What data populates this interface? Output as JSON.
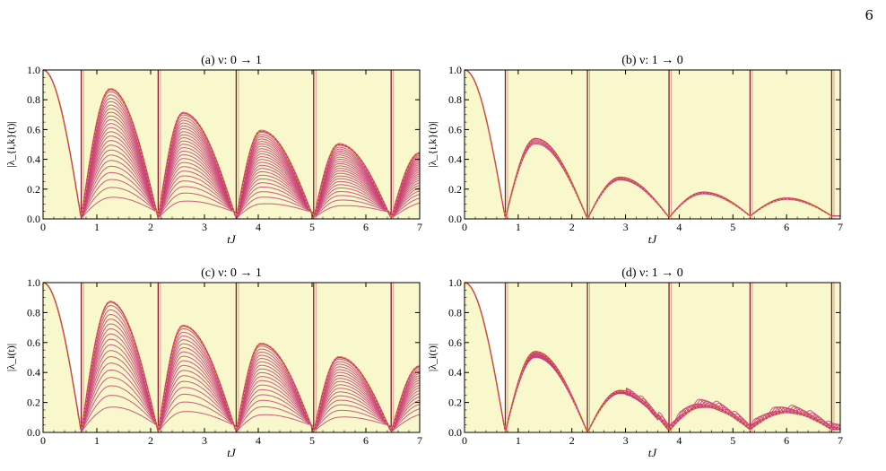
{
  "page": {
    "number": "6"
  },
  "colors": {
    "background_fill": "#f8f8cc",
    "curve": "#c83c76",
    "envelope": "#f2ec1a",
    "vline": "#7a1f2a"
  },
  "chart_data": [
    {
      "type": "line",
      "title": "(a) ν: 0 → 1",
      "xlabel": "tJ",
      "ylabel": "|λ_{i,k}(t)|",
      "xlim": [
        0,
        7
      ],
      "ylim": [
        0,
        1
      ],
      "xticks": [
        0,
        1,
        2,
        3,
        4,
        5,
        6,
        7
      ],
      "yticks": [
        0.0,
        0.2,
        0.4,
        0.6,
        0.8,
        1.0
      ],
      "xtick_labels": [
        "0",
        "1",
        "2",
        "3",
        "4",
        "5",
        "6",
        "7"
      ],
      "ytick_labels": [
        "0.0",
        "0.2",
        "0.4",
        "0.6",
        "0.8",
        "1.0"
      ],
      "vlines": [
        0.71,
        2.14,
        3.59,
        5.03,
        6.47
      ],
      "envelope_points": [
        [
          0,
          1.0
        ],
        [
          0.71,
          0.0
        ],
        [
          1.25,
          0.87
        ],
        [
          2.14,
          0.0
        ],
        [
          2.6,
          0.71
        ],
        [
          3.59,
          0.0
        ],
        [
          4.05,
          0.59
        ],
        [
          5.03,
          0.0
        ],
        [
          5.5,
          0.5
        ],
        [
          6.47,
          0.0
        ],
        [
          7.0,
          0.44
        ]
      ],
      "num_family_curves": 24
    },
    {
      "type": "line",
      "title": "(b) ν: 1 → 0",
      "xlabel": "tJ",
      "ylabel": "|λ_{i,k}(t)|",
      "xlim": [
        0,
        7
      ],
      "ylim": [
        0,
        1
      ],
      "xticks": [
        0,
        1,
        2,
        3,
        4,
        5,
        6,
        7
      ],
      "yticks": [
        0.0,
        0.2,
        0.4,
        0.6,
        0.8,
        1.0
      ],
      "xtick_labels": [
        "0",
        "1",
        "2",
        "3",
        "4",
        "5",
        "6",
        "7"
      ],
      "ytick_labels": [
        "0.0",
        "0.2",
        "0.4",
        "0.6",
        "0.8",
        "1.0"
      ],
      "vlines": [
        0.76,
        2.29,
        3.81,
        5.32,
        6.84
      ],
      "envelope_points": [
        [
          0,
          1.0
        ],
        [
          0.76,
          0.0
        ],
        [
          1.32,
          0.54
        ],
        [
          2.29,
          0.0
        ],
        [
          2.9,
          0.28
        ],
        [
          3.81,
          0.01
        ],
        [
          4.45,
          0.18
        ],
        [
          5.32,
          0.02
        ],
        [
          6.0,
          0.14
        ],
        [
          6.84,
          0.02
        ],
        [
          7.0,
          0.02
        ]
      ],
      "num_family_curves": 6
    },
    {
      "type": "line",
      "title": "(c) ν: 0 → 1",
      "xlabel": "tJ",
      "ylabel": "|λ_i(t)|",
      "xlim": [
        0,
        7
      ],
      "ylim": [
        0,
        1
      ],
      "xticks": [
        0,
        1,
        2,
        3,
        4,
        5,
        6,
        7
      ],
      "yticks": [
        0.0,
        0.2,
        0.4,
        0.6,
        0.8,
        1.0
      ],
      "xtick_labels": [
        "0",
        "1",
        "2",
        "3",
        "4",
        "5",
        "6",
        "7"
      ],
      "ytick_labels": [
        "0.0",
        "0.2",
        "0.4",
        "0.6",
        "0.8",
        "1.0"
      ],
      "vlines": [
        0.71,
        2.14,
        3.59,
        5.03,
        6.47
      ],
      "envelope_points": [
        [
          0,
          1.0
        ],
        [
          0.71,
          0.0
        ],
        [
          1.25,
          0.87
        ],
        [
          2.14,
          0.0
        ],
        [
          2.6,
          0.71
        ],
        [
          3.59,
          0.0
        ],
        [
          4.05,
          0.59
        ],
        [
          5.03,
          0.0
        ],
        [
          5.5,
          0.5
        ],
        [
          6.47,
          0.0
        ],
        [
          7.0,
          0.44
        ]
      ],
      "num_family_curves": 18
    },
    {
      "type": "line",
      "title": "(d) ν: 1 → 0",
      "xlabel": "tJ",
      "ylabel": "|λ_i(t)|",
      "xlim": [
        0,
        7
      ],
      "ylim": [
        0,
        1
      ],
      "xticks": [
        0,
        1,
        2,
        3,
        4,
        5,
        6,
        7
      ],
      "yticks": [
        0.0,
        0.2,
        0.4,
        0.6,
        0.8,
        1.0
      ],
      "xtick_labels": [
        "0",
        "1",
        "2",
        "3",
        "4",
        "5",
        "6",
        "7"
      ],
      "ytick_labels": [
        "0.0",
        "0.2",
        "0.4",
        "0.6",
        "0.8",
        "1.0"
      ],
      "vlines": [
        0.76,
        2.29,
        3.81,
        5.32,
        6.84
      ],
      "envelope_points": [
        [
          0,
          1.0
        ],
        [
          0.76,
          0.0
        ],
        [
          1.32,
          0.54
        ],
        [
          2.29,
          0.0
        ],
        [
          2.9,
          0.28
        ],
        [
          3.81,
          0.01
        ],
        [
          4.45,
          0.18
        ],
        [
          5.32,
          0.02
        ],
        [
          6.0,
          0.14
        ],
        [
          6.84,
          0.02
        ],
        [
          7.0,
          0.02
        ]
      ],
      "num_family_curves": 12
    }
  ]
}
